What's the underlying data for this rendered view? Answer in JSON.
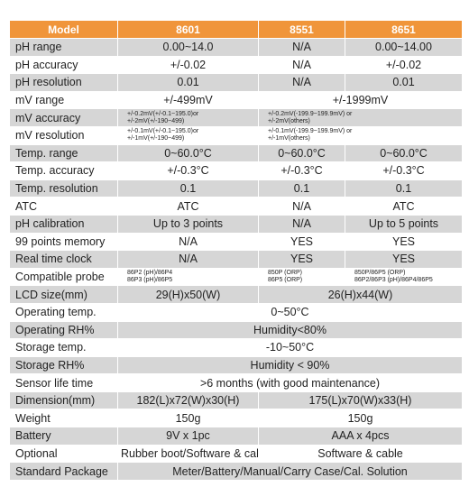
{
  "table": {
    "header": [
      "Model",
      "8601",
      "8551",
      "8651"
    ],
    "rows": [
      [
        "pH range",
        "0.00~14.0",
        "N/A",
        "0.00~14.00"
      ],
      [
        "pH accuracy",
        "+/-0.02",
        "N/A",
        "+/-0.02"
      ],
      [
        "pH resolution",
        "0.01",
        "N/A",
        "0.01"
      ],
      [
        "mV range",
        "+/-499mV",
        "+/-1999mV"
      ],
      [
        "mV accuracy",
        [
          "+/-0.2mV(+/-0.1~195.0)or",
          "+/-2mV(+/-190~499)"
        ],
        [
          "+/-0.2mV(-199.9~199.9mV)     or",
          "+/-2mV(others)"
        ]
      ],
      [
        "mV resolution",
        [
          "+/-0.1mV(+/-0.1~195.0)or",
          "+/-1mV(+/-190~499)"
        ],
        [
          "+/-0.1mV(-199.9~199.9mV)     or",
          "+/-1mV(others)"
        ]
      ],
      [
        "Temp. range",
        "0~60.0°C",
        "0~60.0°C",
        "0~60.0°C"
      ],
      [
        "Temp. accuracy",
        "+/-0.3°C",
        "+/-0.3°C",
        "+/-0.3°C"
      ],
      [
        "Temp. resolution",
        "0.1",
        "0.1",
        "0.1"
      ],
      [
        "ATC",
        "ATC",
        "N/A",
        "ATC"
      ],
      [
        "pH calibration",
        "Up to 3 points",
        "N/A",
        "Up to 5 points"
      ],
      [
        "99 points memory",
        "N/A",
        "YES",
        "YES"
      ],
      [
        "Real time clock",
        "N/A",
        "YES",
        "YES"
      ],
      [
        "Compatible probe",
        [
          "86P2 (pH)/86P4",
          "86P3 (pH)/86P5"
        ],
        [
          "850P (ORP)",
          "86P5 (ORP)"
        ],
        [
          "850P/86P5 (ORP)",
          "86P2/86P3 (pH)/86P4/86P5"
        ]
      ],
      [
        "LCD size(mm)",
        "29(H)x50(W)",
        "26(H)x44(W)"
      ],
      [
        "Operating temp.",
        "0~50°C"
      ],
      [
        "Operating RH%",
        "Humidity<80%"
      ],
      [
        "Storage temp.",
        "-10~50°C"
      ],
      [
        "Storage RH%",
        "Humidity < 90%"
      ],
      [
        "Sensor life time",
        ">6 months (with good maintenance)"
      ],
      [
        "Dimension(mm)",
        "182(L)x72(W)x30(H)",
        "175(L)x70(W)x33(H)"
      ],
      [
        "Weight",
        "150g",
        "150g"
      ],
      [
        "Battery",
        "9V x 1pc",
        "AAA x 4pcs"
      ],
      [
        "Optional",
        "Rubber boot/Software & cable",
        "Software & cable"
      ],
      [
        "Standard Package",
        "Meter/Battery/Manual/Carry Case/Cal. Solution"
      ]
    ]
  }
}
